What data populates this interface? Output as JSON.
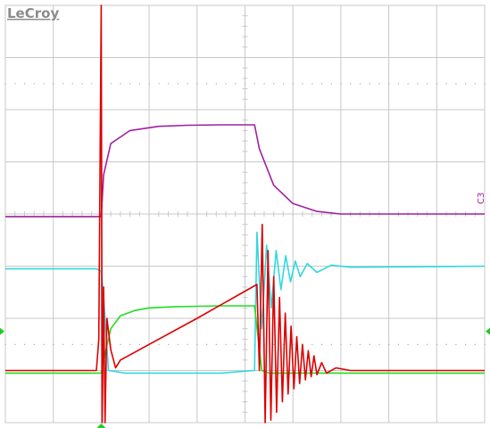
{
  "brand": "LeCroy",
  "channel_tag": "C3",
  "colors": {
    "background": "#ffffff",
    "grid": "#c8c8c8",
    "dots": "#a8a8a8",
    "purple": "#a020a0",
    "cyan": "#30d8e0",
    "green": "#22dd22",
    "red": "#dd0000",
    "marker": "#22cc22"
  },
  "chart_data": {
    "type": "line",
    "title": "",
    "xlabel": "",
    "ylabel": "",
    "grid": true,
    "xlim": [
      0,
      10
    ],
    "ylim": [
      -4,
      4
    ],
    "series": [
      {
        "color": "#a020a0",
        "x": [
          0,
          2.0,
          2.05,
          2.2,
          2.6,
          3.2,
          3.8,
          4.5,
          5.2,
          5.3,
          5.6,
          6.0,
          6.5,
          7.0,
          10
        ],
        "values": [
          -0.05,
          -0.05,
          0.75,
          1.35,
          1.6,
          1.68,
          1.7,
          1.71,
          1.71,
          1.25,
          0.55,
          0.2,
          0.05,
          0.0,
          0.0
        ]
      },
      {
        "color": "#30d8e0",
        "x": [
          0,
          1.9,
          2.0,
          2.05,
          2.15,
          2.5,
          4.5,
          5.2,
          5.25,
          5.35,
          5.45,
          5.55,
          5.65,
          5.75,
          5.85,
          5.95,
          6.05,
          6.15,
          6.3,
          6.5,
          6.8,
          7.2,
          10
        ],
        "values": [
          -1.05,
          -1.05,
          -1.1,
          -1.6,
          -3.0,
          -3.05,
          -3.05,
          -3.0,
          -0.35,
          -2.2,
          -0.6,
          -1.8,
          -0.7,
          -1.45,
          -0.8,
          -1.3,
          -0.9,
          -1.2,
          -0.95,
          -1.12,
          -0.98,
          -1.02,
          -1.0
        ]
      },
      {
        "color": "#22dd22",
        "x": [
          0,
          2.0,
          2.1,
          2.2,
          2.4,
          2.7,
          3.0,
          3.5,
          4.0,
          4.5,
          5.2,
          5.35,
          5.5,
          10
        ],
        "values": [
          -3.05,
          -3.05,
          -2.6,
          -2.2,
          -1.95,
          -1.85,
          -1.8,
          -1.78,
          -1.77,
          -1.76,
          -1.76,
          -3.0,
          -3.05,
          -3.05
        ]
      },
      {
        "color": "#dd0000",
        "x": [
          0,
          1.9,
          1.95,
          2.0,
          2.02,
          2.05,
          2.08,
          2.12,
          2.2,
          2.3,
          2.4,
          4.0,
          5.25,
          5.3,
          5.36,
          5.42,
          5.48,
          5.54,
          5.6,
          5.66,
          5.72,
          5.78,
          5.84,
          5.9,
          5.96,
          6.02,
          6.08,
          6.14,
          6.2,
          6.26,
          6.32,
          6.38,
          6.44,
          6.5,
          6.6,
          6.7,
          6.9,
          7.2,
          10
        ],
        "values": [
          -3.0,
          -3.0,
          -2.4,
          4.0,
          -4.0,
          -1.4,
          -4.0,
          -2.0,
          -2.6,
          -2.95,
          -2.8,
          -2.0,
          -1.35,
          -3.0,
          -0.2,
          -4.0,
          -0.7,
          -3.95,
          -1.2,
          -3.8,
          -1.6,
          -3.6,
          -1.9,
          -3.45,
          -2.15,
          -3.35,
          -2.35,
          -3.25,
          -2.5,
          -3.18,
          -2.62,
          -3.12,
          -2.72,
          -3.08,
          -2.85,
          -3.05,
          -2.95,
          -3.0,
          -3.0
        ]
      }
    ]
  },
  "markers": [
    {
      "kind": "trigger-level-left",
      "y": -2.25
    },
    {
      "kind": "trigger-level-right",
      "y": -2.25
    },
    {
      "kind": "trigger-position-bottom",
      "x": 2.0
    }
  ]
}
